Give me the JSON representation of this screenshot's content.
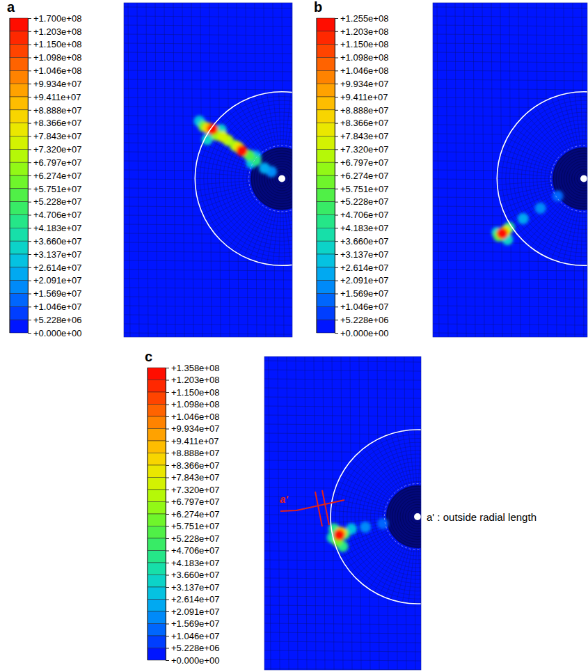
{
  "chart_data": [
    {
      "type": "contour",
      "panel": "a",
      "tick_labels": false,
      "xlim": [
        -1.82,
        0.12
      ],
      "ylim": [
        -1.82,
        2.02
      ],
      "colorbar_range": [
        0,
        170000000
      ],
      "colorbar_ticks": [
        {
          "value": 170000000,
          "label": "+1.700e+08"
        },
        {
          "value": 120300000,
          "label": "+1.203e+08"
        },
        {
          "value": 115000000,
          "label": "+1.150e+08"
        },
        {
          "value": 109800000,
          "label": "+1.098e+08"
        },
        {
          "value": 104600000,
          "label": "+1.046e+08"
        },
        {
          "value": 99340000,
          "label": "+9.934e+07"
        },
        {
          "value": 94110000,
          "label": "+9.411e+07"
        },
        {
          "value": 88880000,
          "label": "+8.888e+07"
        },
        {
          "value": 83660000,
          "label": "+8.366e+07"
        },
        {
          "value": 78430000,
          "label": "+7.843e+07"
        },
        {
          "value": 73200000,
          "label": "+7.320e+07"
        },
        {
          "value": 67970000,
          "label": "+6.797e+07"
        },
        {
          "value": 62740000,
          "label": "+6.274e+07"
        },
        {
          "value": 57510000,
          "label": "+5.751e+07"
        },
        {
          "value": 52280000,
          "label": "+5.228e+07"
        },
        {
          "value": 47060000,
          "label": "+4.706e+07"
        },
        {
          "value": 41830000,
          "label": "+4.183e+07"
        },
        {
          "value": 36600000,
          "label": "+3.660e+07"
        },
        {
          "value": 31370000,
          "label": "+3.137e+07"
        },
        {
          "value": 26140000,
          "label": "+2.614e+07"
        },
        {
          "value": 20910000,
          "label": "+2.091e+07"
        },
        {
          "value": 15690000,
          "label": "+1.569e+07"
        },
        {
          "value": 10460000,
          "label": "+1.046e+07"
        },
        {
          "value": 5228000,
          "label": "+5.228e+06"
        },
        {
          "value": 0,
          "label": "+0.000e+00"
        }
      ],
      "cells": [
        {
          "x": -0.12,
          "y": 0.08,
          "value": 16000000
        },
        {
          "x": -0.2,
          "y": 0.12,
          "value": 21000000
        },
        {
          "x": -0.3,
          "y": 0.26,
          "value": 26000000
        },
        {
          "x": -0.95,
          "y": 0.66,
          "value": 31000000
        },
        {
          "x": -0.35,
          "y": 0.18,
          "value": 31000000
        },
        {
          "x": -0.86,
          "y": 0.45,
          "value": 34000000
        },
        {
          "x": -0.7,
          "y": 0.56,
          "value": 36000000
        },
        {
          "x": -0.3,
          "y": 0.21,
          "value": 45000000
        },
        {
          "x": -0.38,
          "y": 0.27,
          "value": 55000000
        },
        {
          "x": -0.9,
          "y": 0.6,
          "value": 58000000
        },
        {
          "x": -0.75,
          "y": 0.5,
          "value": 63000000
        },
        {
          "x": -0.54,
          "y": 0.38,
          "value": 65000000
        },
        {
          "x": -0.62,
          "y": 0.44,
          "value": 68000000
        },
        {
          "x": -0.68,
          "y": 0.48,
          "value": 76000000
        },
        {
          "x": -0.5,
          "y": 0.36,
          "value": 80000000
        },
        {
          "x": -0.85,
          "y": 0.58,
          "value": 84000000
        },
        {
          "x": -0.46,
          "y": 0.32,
          "value": 121000000
        },
        {
          "x": -0.8,
          "y": 0.57,
          "value": 170000000
        }
      ]
    },
    {
      "type": "contour",
      "panel": "b",
      "tick_labels": false,
      "xlim": [
        -1.74,
        0.04
      ],
      "ylim": [
        -1.82,
        2.02
      ],
      "colorbar_range": [
        0,
        125500000
      ],
      "colorbar_ticks": [
        {
          "value": 125500000,
          "label": "+1.255e+08"
        },
        {
          "value": 120300000,
          "label": "+1.203e+08"
        },
        {
          "value": 115000000,
          "label": "+1.150e+08"
        },
        {
          "value": 109800000,
          "label": "+1.098e+08"
        },
        {
          "value": 104600000,
          "label": "+1.046e+08"
        },
        {
          "value": 99340000,
          "label": "+9.934e+07"
        },
        {
          "value": 94110000,
          "label": "+9.411e+07"
        },
        {
          "value": 88880000,
          "label": "+8.888e+07"
        },
        {
          "value": 83660000,
          "label": "+8.366e+07"
        },
        {
          "value": 78430000,
          "label": "+7.843e+07"
        },
        {
          "value": 73200000,
          "label": "+7.320e+07"
        },
        {
          "value": 67970000,
          "label": "+6.797e+07"
        },
        {
          "value": 62740000,
          "label": "+6.274e+07"
        },
        {
          "value": 57510000,
          "label": "+5.751e+07"
        },
        {
          "value": 52280000,
          "label": "+5.228e+07"
        },
        {
          "value": 47060000,
          "label": "+4.706e+07"
        },
        {
          "value": 41830000,
          "label": "+4.183e+07"
        },
        {
          "value": 36600000,
          "label": "+3.660e+07"
        },
        {
          "value": 31370000,
          "label": "+3.137e+07"
        },
        {
          "value": 26140000,
          "label": "+2.614e+07"
        },
        {
          "value": 20910000,
          "label": "+2.091e+07"
        },
        {
          "value": 15690000,
          "label": "+1.569e+07"
        },
        {
          "value": 10460000,
          "label": "+1.046e+07"
        },
        {
          "value": 5228000,
          "label": "+5.228e+06"
        },
        {
          "value": 0,
          "label": "+0.000e+00"
        }
      ],
      "cells": [
        {
          "x": -0.3,
          "y": -0.2,
          "value": 12000000
        },
        {
          "x": -0.5,
          "y": -0.34,
          "value": 18000000
        },
        {
          "x": -0.7,
          "y": -0.46,
          "value": 26000000
        },
        {
          "x": -1.0,
          "y": -0.62,
          "value": 32000000
        },
        {
          "x": -0.88,
          "y": -0.7,
          "value": 34000000
        },
        {
          "x": -0.86,
          "y": -0.56,
          "value": 44000000
        },
        {
          "x": -0.98,
          "y": -0.66,
          "value": 56000000
        },
        {
          "x": -0.9,
          "y": -0.6,
          "value": 78000000
        },
        {
          "x": -0.94,
          "y": -0.63,
          "value": 125500000
        }
      ]
    },
    {
      "type": "contour",
      "panel": "c",
      "tick_labels": false,
      "xlim": [
        -1.76,
        0.04
      ],
      "ylim": [
        -1.76,
        1.84
      ],
      "colorbar_range": [
        0,
        135800000
      ],
      "colorbar_ticks": [
        {
          "value": 135800000,
          "label": "+1.358e+08"
        },
        {
          "value": 120300000,
          "label": "+1.203e+08"
        },
        {
          "value": 115000000,
          "label": "+1.150e+08"
        },
        {
          "value": 109800000,
          "label": "+1.098e+08"
        },
        {
          "value": 104600000,
          "label": "+1.046e+08"
        },
        {
          "value": 99340000,
          "label": "+9.934e+07"
        },
        {
          "value": 94110000,
          "label": "+9.411e+07"
        },
        {
          "value": 88880000,
          "label": "+8.888e+07"
        },
        {
          "value": 83660000,
          "label": "+8.366e+07"
        },
        {
          "value": 78430000,
          "label": "+7.843e+07"
        },
        {
          "value": 73200000,
          "label": "+7.320e+07"
        },
        {
          "value": 67970000,
          "label": "+6.797e+07"
        },
        {
          "value": 62740000,
          "label": "+6.274e+07"
        },
        {
          "value": 57510000,
          "label": "+5.751e+07"
        },
        {
          "value": 52280000,
          "label": "+5.228e+07"
        },
        {
          "value": 47060000,
          "label": "+4.706e+07"
        },
        {
          "value": 41830000,
          "label": "+4.183e+07"
        },
        {
          "value": 36600000,
          "label": "+3.660e+07"
        },
        {
          "value": 31370000,
          "label": "+3.137e+07"
        },
        {
          "value": 26140000,
          "label": "+2.614e+07"
        },
        {
          "value": 20910000,
          "label": "+2.091e+07"
        },
        {
          "value": 15690000,
          "label": "+1.569e+07"
        },
        {
          "value": 10460000,
          "label": "+1.046e+07"
        },
        {
          "value": 5228000,
          "label": "+5.228e+06"
        },
        {
          "value": 0,
          "label": "+0.000e+00"
        }
      ],
      "cells": [
        {
          "x": -0.4,
          "y": -0.08,
          "value": 11000000
        },
        {
          "x": -0.6,
          "y": -0.12,
          "value": 18000000
        },
        {
          "x": -0.76,
          "y": -0.14,
          "value": 30000000
        },
        {
          "x": -0.98,
          "y": -0.24,
          "value": 38000000
        },
        {
          "x": -0.86,
          "y": -0.34,
          "value": 42000000
        },
        {
          "x": -0.96,
          "y": -0.14,
          "value": 45000000
        },
        {
          "x": -0.84,
          "y": -0.2,
          "value": 52000000
        },
        {
          "x": -0.92,
          "y": -0.28,
          "value": 60000000
        },
        {
          "x": -0.88,
          "y": -0.18,
          "value": 85000000
        },
        {
          "x": -0.9,
          "y": -0.21,
          "value": 135800000
        }
      ],
      "annotations": [
        "a'",
        "a' : outside radial length"
      ]
    }
  ]
}
